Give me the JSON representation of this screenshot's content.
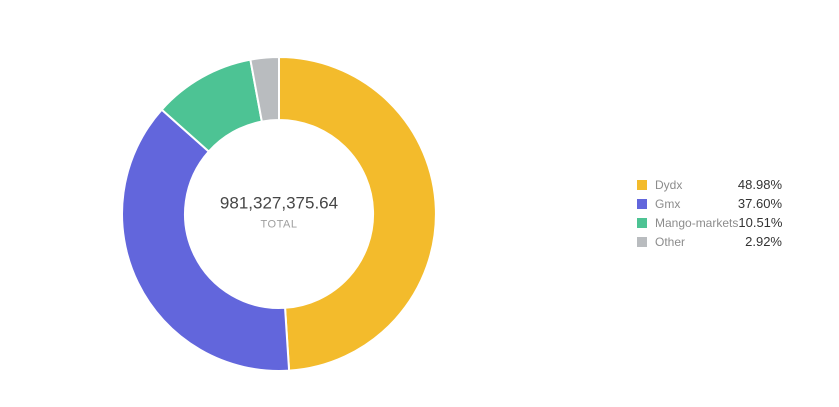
{
  "chart": {
    "center_value": "981,327,375.64",
    "center_label": "TOTAL"
  },
  "chart_data": {
    "type": "pie",
    "donut": true,
    "start_angle_deg": 0,
    "direction": "clockwise",
    "inner_radius_ratio": 0.6,
    "legend_position": "right",
    "categories": [
      "Dydx",
      "Gmx",
      "Mango-markets",
      "Other"
    ],
    "values": [
      48.98,
      37.6,
      10.51,
      2.92
    ],
    "value_labels": [
      "48.98%",
      "37.60%",
      "10.51%",
      "2.92%"
    ],
    "colors": [
      "#F3BB2C",
      "#6266DC",
      "#4DC394",
      "#B9BCBF"
    ],
    "slice_border_color": "#FFFFFF",
    "center_value": "981,327,375.64",
    "center_label": "TOTAL"
  },
  "legend": {
    "items": [
      {
        "label": "Dydx",
        "value": "48.98%",
        "color": "#F3BB2C"
      },
      {
        "label": "Gmx",
        "value": "37.60%",
        "color": "#6266DC"
      },
      {
        "label": "Mango-markets",
        "value": "10.51%",
        "color": "#4DC394"
      },
      {
        "label": "Other",
        "value": "2.92%",
        "color": "#B9BCBF"
      }
    ]
  }
}
